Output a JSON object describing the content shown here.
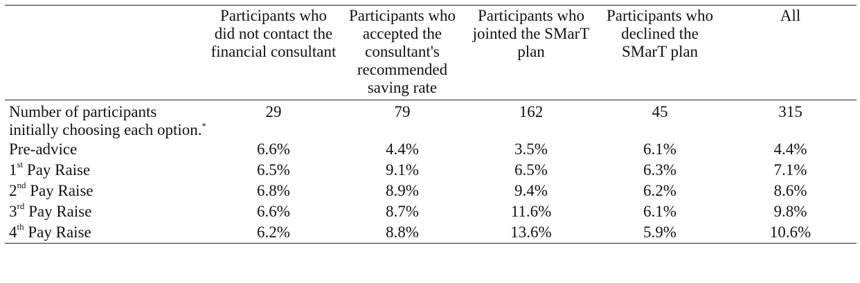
{
  "table": {
    "headers": [
      "",
      "Participants who did not contact the financial consultant",
      "Participants who accepted the consultant's recommended saving rate",
      "Participants who jointed the SMarT plan",
      "Participants who declined the SMarT plan",
      "All"
    ],
    "count_row": {
      "label": "Number of participants initially choosing each option.",
      "footnote_mark": "*",
      "values": [
        "29",
        "79",
        "162",
        "45",
        "315"
      ]
    },
    "rows": [
      {
        "label": "Pre-advice",
        "ordinal_num": "",
        "ordinal_sup": "",
        "ordinal_rest": "",
        "values": [
          "6.6%",
          "4.4%",
          "3.5%",
          "6.1%",
          "4.4%"
        ]
      },
      {
        "label": "",
        "ordinal_num": "1",
        "ordinal_sup": "st",
        "ordinal_rest": " Pay Raise",
        "values": [
          "6.5%",
          "9.1%",
          "6.5%",
          "6.3%",
          "7.1%"
        ]
      },
      {
        "label": "",
        "ordinal_num": "2",
        "ordinal_sup": "nd",
        "ordinal_rest": " Pay Raise",
        "values": [
          "6.8%",
          "8.9%",
          "9.4%",
          "6.2%",
          "8.6%"
        ]
      },
      {
        "label": "",
        "ordinal_num": "3",
        "ordinal_sup": "rd",
        "ordinal_rest": " Pay Raise",
        "values": [
          "6.6%",
          "8.7%",
          "11.6%",
          "6.1%",
          "9.8%"
        ]
      },
      {
        "label": "",
        "ordinal_num": "4",
        "ordinal_sup": "th",
        "ordinal_rest": " Pay Raise",
        "values": [
          "6.2%",
          "8.8%",
          "13.6%",
          "5.9%",
          "10.6%"
        ]
      }
    ]
  }
}
